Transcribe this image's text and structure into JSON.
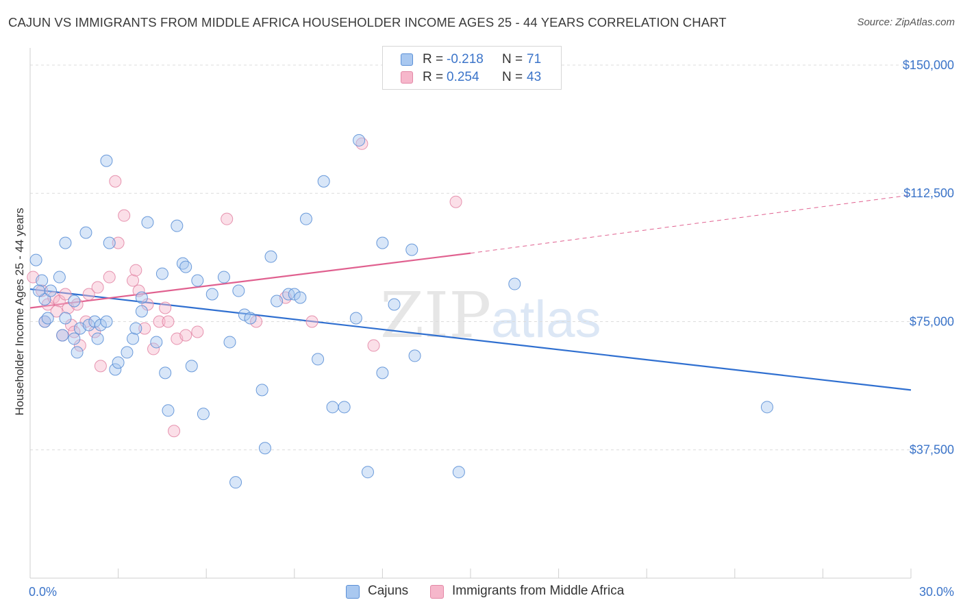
{
  "header": {
    "title": "CAJUN VS IMMIGRANTS FROM MIDDLE AFRICA HOUSEHOLDER INCOME AGES 25 - 44 YEARS CORRELATION CHART",
    "source": "Source: ZipAtlas.com"
  },
  "watermark": {
    "zip": "ZIP",
    "atlas": "atlas"
  },
  "legend": {
    "rows": [
      {
        "r_label": "R =",
        "r_value": "-0.218",
        "n_label": "N =",
        "n_value": "71",
        "color": "#a9c8f0"
      },
      {
        "r_label": "R =",
        "r_value": "0.254",
        "n_label": "N =",
        "n_value": "43",
        "color": "#f6b7cb"
      }
    ]
  },
  "bottom_legend": {
    "items": [
      {
        "label": "Cajuns",
        "color": "#a9c8f0"
      },
      {
        "label": "Immigrants from Middle Africa",
        "color": "#f6b7cb"
      }
    ]
  },
  "colors": {
    "blue_fill": "#a9c8f0",
    "blue_stroke": "#5a8fd6",
    "blue_line": "#2f6fd0",
    "pink_fill": "#f6b7cb",
    "pink_stroke": "#e387a6",
    "pink_line": "#e0608f",
    "grid": "#dcdcdc",
    "tick_text": "#3b74c9"
  },
  "chart_data": {
    "type": "scatter",
    "title": "CAJUN VS IMMIGRANTS FROM MIDDLE AFRICA HOUSEHOLDER INCOME AGES 25 - 44 YEARS CORRELATION CHART",
    "xlabel": "",
    "ylabel": "Householder Income Ages 25 - 44 years",
    "xlim": [
      0,
      30
    ],
    "ylim": [
      0,
      157000
    ],
    "x_tick_labels": [
      "0.0%",
      "30.0%"
    ],
    "y_ticks": [
      37500,
      75000,
      112500,
      150000
    ],
    "y_tick_labels": [
      "$37,500",
      "$75,000",
      "$112,500",
      "$150,000"
    ],
    "grid": true,
    "series": [
      {
        "name": "Cajuns",
        "points": [
          [
            0.2,
            93000
          ],
          [
            0.4,
            87000
          ],
          [
            0.5,
            81500
          ],
          [
            0.7,
            84000
          ],
          [
            0.3,
            84000
          ],
          [
            0.5,
            75000
          ],
          [
            0.6,
            76000
          ],
          [
            1.0,
            88000
          ],
          [
            1.5,
            81000
          ],
          [
            1.2,
            76000
          ],
          [
            1.1,
            71000
          ],
          [
            1.7,
            73000
          ],
          [
            1.6,
            66000
          ],
          [
            2.0,
            74000
          ],
          [
            2.2,
            75000
          ],
          [
            2.3,
            70000
          ],
          [
            1.5,
            70000
          ],
          [
            2.4,
            74000
          ],
          [
            2.6,
            75000
          ],
          [
            2.9,
            61000
          ],
          [
            3.0,
            63000
          ],
          [
            3.3,
            66000
          ],
          [
            3.5,
            70000
          ],
          [
            3.6,
            73000
          ],
          [
            3.8,
            78000
          ],
          [
            2.6,
            122000
          ],
          [
            1.9,
            101000
          ],
          [
            2.7,
            98000
          ],
          [
            1.2,
            98000
          ],
          [
            4.0,
            104000
          ],
          [
            4.3,
            69000
          ],
          [
            4.6,
            60000
          ],
          [
            4.7,
            49000
          ],
          [
            5.0,
            103000
          ],
          [
            5.2,
            92000
          ],
          [
            5.3,
            91000
          ],
          [
            5.5,
            62000
          ],
          [
            5.7,
            87000
          ],
          [
            5.9,
            48000
          ],
          [
            6.2,
            83000
          ],
          [
            6.8,
            69000
          ],
          [
            6.6,
            88000
          ],
          [
            7.1,
            84000
          ],
          [
            7.3,
            77000
          ],
          [
            7.5,
            76000
          ],
          [
            7.9,
            55000
          ],
          [
            8.2,
            94000
          ],
          [
            8.0,
            38000
          ],
          [
            8.8,
            83000
          ],
          [
            9.0,
            83000
          ],
          [
            9.2,
            82000
          ],
          [
            9.4,
            105000
          ],
          [
            7.0,
            28000
          ],
          [
            9.8,
            64000
          ],
          [
            10.0,
            116000
          ],
          [
            10.3,
            50000
          ],
          [
            10.7,
            50000
          ],
          [
            11.1,
            76000
          ],
          [
            11.2,
            128000
          ],
          [
            11.5,
            31000
          ],
          [
            12.0,
            60000
          ],
          [
            12.0,
            98000
          ],
          [
            12.4,
            80000
          ],
          [
            13.1,
            65000
          ],
          [
            13.0,
            96000
          ],
          [
            14.6,
            31000
          ],
          [
            16.5,
            86000
          ],
          [
            25.1,
            50000
          ],
          [
            3.8,
            82000
          ],
          [
            8.4,
            81000
          ],
          [
            4.5,
            89000
          ]
        ]
      },
      {
        "name": "Immigrants from Middle Africa",
        "points": [
          [
            0.1,
            88000
          ],
          [
            0.4,
            84000
          ],
          [
            0.6,
            80000
          ],
          [
            0.8,
            82000
          ],
          [
            1.0,
            81000
          ],
          [
            1.2,
            83000
          ],
          [
            0.9,
            78000
          ],
          [
            1.4,
            74000
          ],
          [
            1.3,
            79000
          ],
          [
            1.6,
            80000
          ],
          [
            1.9,
            75000
          ],
          [
            2.0,
            83000
          ],
          [
            1.5,
            72000
          ],
          [
            1.7,
            68000
          ],
          [
            2.2,
            72000
          ],
          [
            2.4,
            62000
          ],
          [
            2.7,
            88000
          ],
          [
            2.9,
            116000
          ],
          [
            3.0,
            98000
          ],
          [
            3.2,
            106000
          ],
          [
            3.5,
            87000
          ],
          [
            3.6,
            90000
          ],
          [
            3.7,
            84000
          ],
          [
            3.9,
            73000
          ],
          [
            4.0,
            80000
          ],
          [
            4.2,
            67000
          ],
          [
            4.4,
            75000
          ],
          [
            4.6,
            79000
          ],
          [
            4.7,
            75000
          ],
          [
            5.0,
            70000
          ],
          [
            5.3,
            71000
          ],
          [
            4.9,
            43000
          ],
          [
            5.7,
            72000
          ],
          [
            6.7,
            105000
          ],
          [
            7.7,
            75000
          ],
          [
            8.7,
            82000
          ],
          [
            9.6,
            75000
          ],
          [
            11.3,
            127000
          ],
          [
            11.7,
            68000
          ],
          [
            14.5,
            110000
          ],
          [
            2.3,
            85000
          ],
          [
            1.1,
            71000
          ],
          [
            0.5,
            75000
          ]
        ]
      }
    ],
    "trend_lines": [
      {
        "series": "Cajuns",
        "from": [
          0,
          84500
        ],
        "to": [
          30,
          55000
        ],
        "style": "solid"
      },
      {
        "series": "Immigrants from Middle Africa",
        "from": [
          0,
          79000
        ],
        "to": [
          15,
          95000
        ],
        "style": "solid"
      },
      {
        "series": "Immigrants from Middle Africa",
        "from": [
          15,
          95000
        ],
        "to": [
          30,
          112000
        ],
        "style": "dashed"
      }
    ]
  }
}
